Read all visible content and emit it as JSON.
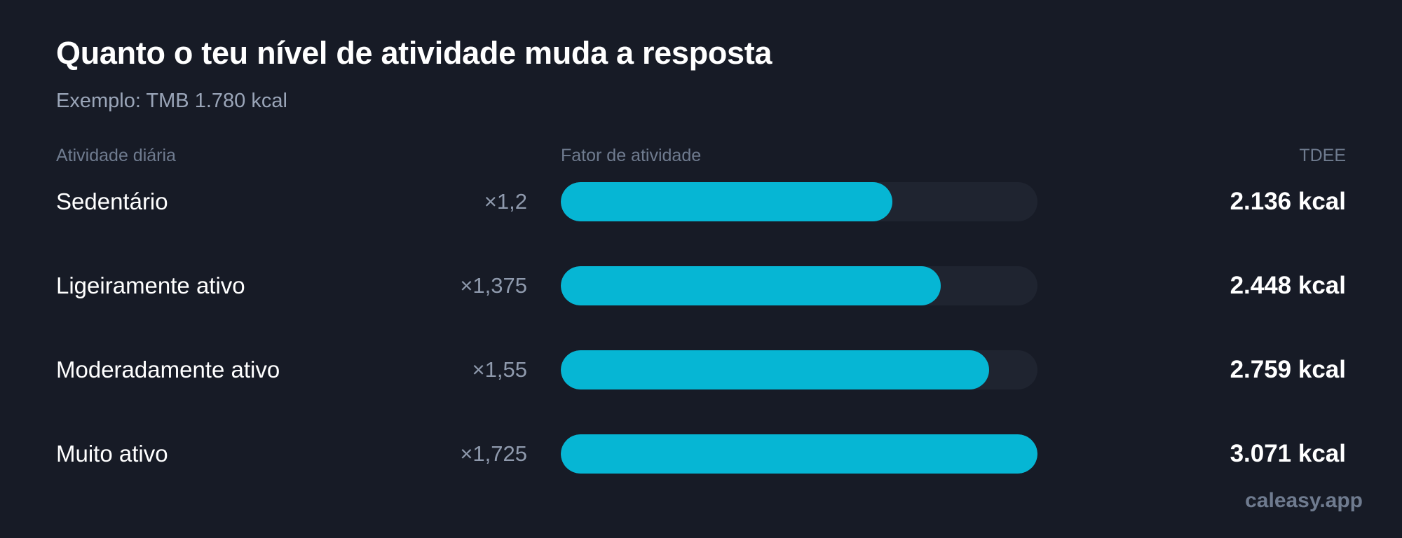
{
  "header": {
    "title": "Quanto o teu nível de atividade muda a resposta",
    "subtitle": "Exemplo: TMB 1.780 kcal"
  },
  "columns": {
    "activity": "Atividade diária",
    "factor": "Fator de atividade",
    "tdee": "TDEE"
  },
  "colors": {
    "background": "#171b26",
    "bar_fill": "#06b6d4",
    "bar_track": "#1f2430"
  },
  "chart_data": {
    "type": "bar",
    "orientation": "horizontal",
    "categories": [
      "Sedentário",
      "Ligeiramente ativo",
      "Moderadamente ativo",
      "Muito ativo"
    ],
    "multiplier_labels": [
      "×1,2",
      "×1,375",
      "×1,55",
      "×1,725"
    ],
    "factors": [
      1.2,
      1.375,
      1.55,
      1.725
    ],
    "values": [
      2136,
      2448,
      2759,
      3071
    ],
    "value_labels": [
      "2.136 kcal",
      "2.448 kcal",
      "2.759 kcal",
      "3.071 kcal"
    ],
    "xlim": [
      0,
      3071
    ],
    "grid": false,
    "legend": "none"
  },
  "footer": {
    "brand": "caleasy.app"
  }
}
